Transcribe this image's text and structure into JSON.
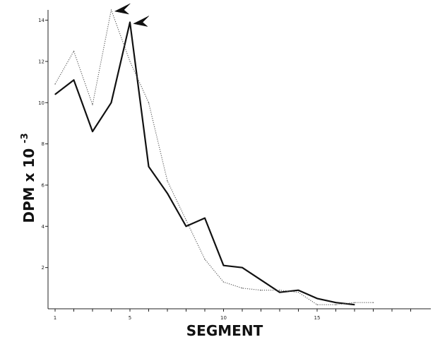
{
  "chart_data": {
    "type": "line",
    "xlabel": "SEGMENT",
    "ylabel": "DPM x 10",
    "ylabel_exponent": "-3",
    "xlim": [
      1,
      20
    ],
    "ylim": [
      0,
      14.5
    ],
    "x_ticks": [
      1,
      2,
      3,
      4,
      5,
      6,
      7,
      8,
      9,
      10,
      11,
      12,
      13,
      14,
      15,
      16,
      17,
      18,
      19,
      20
    ],
    "x_tick_labels": [
      {
        "x": 1,
        "label": "1"
      },
      {
        "x": 5,
        "label": "5"
      },
      {
        "x": 10,
        "label": "10"
      },
      {
        "x": 15,
        "label": "15"
      }
    ],
    "y_ticks": [
      {
        "y": 2,
        "label": "2"
      },
      {
        "y": 4,
        "label": "4"
      },
      {
        "y": 6,
        "label": "6"
      },
      {
        "y": 8,
        "label": "8"
      },
      {
        "y": 10,
        "label": "10"
      },
      {
        "y": 12,
        "label": "12"
      },
      {
        "y": 14,
        "label": "14"
      }
    ],
    "series": [
      {
        "style": "solid",
        "color": "#111111",
        "x": [
          1,
          2,
          3,
          4,
          5,
          6,
          7,
          8,
          9,
          10,
          11,
          12,
          13,
          14,
          15,
          16,
          17
        ],
        "values": [
          10.4,
          11.1,
          8.6,
          10.0,
          13.9,
          6.9,
          5.6,
          4.0,
          4.4,
          2.1,
          2.0,
          1.4,
          0.8,
          0.9,
          0.5,
          0.3,
          0.2
        ],
        "peak_arrow": {
          "x": 5,
          "y": 13.9
        }
      },
      {
        "style": "dotted",
        "color": "#555555",
        "x": [
          1,
          2,
          3,
          4,
          5,
          6,
          7,
          8,
          9,
          10,
          11,
          12,
          13,
          14,
          15,
          16,
          17,
          18
        ],
        "values": [
          10.9,
          12.5,
          9.9,
          14.5,
          12.0,
          10.0,
          6.2,
          4.3,
          2.4,
          1.3,
          1.0,
          0.9,
          0.9,
          0.8,
          0.2,
          0.2,
          0.3,
          0.3
        ],
        "peak_arrow": {
          "x": 4,
          "y": 14.5
        }
      }
    ]
  }
}
